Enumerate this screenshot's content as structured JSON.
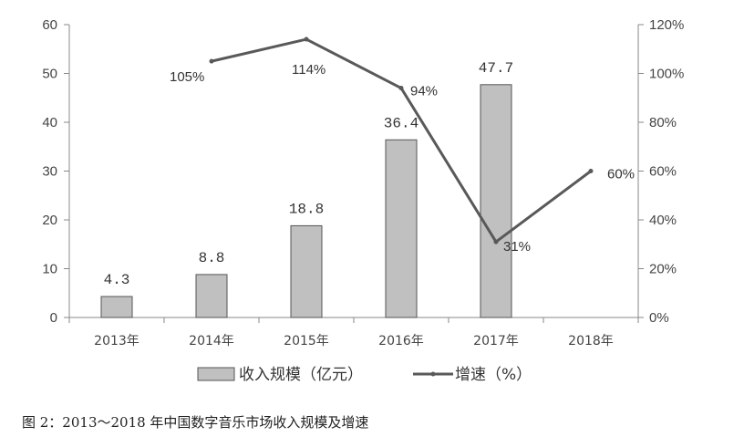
{
  "caption": "图 2：2013～2018 年中国数字音乐市场收入规模及增速",
  "legend": {
    "bar_label": "收入规模（亿元）",
    "line_label": "增速（%）"
  },
  "chart_data": {
    "type": "bar",
    "categories": [
      "2013年",
      "2014年",
      "2015年",
      "2016年",
      "2017年",
      "2018年"
    ],
    "series": [
      {
        "name": "收入规模（亿元）",
        "type": "bar",
        "axis": "left",
        "values": [
          4.3,
          8.8,
          18.8,
          36.4,
          47.7,
          null
        ],
        "labels": [
          "4.3",
          "8.8",
          "18.8",
          "36.4",
          "47.7",
          ""
        ],
        "color": "#c0c0c0"
      },
      {
        "name": "增速（%）",
        "type": "line",
        "axis": "right",
        "values": [
          null,
          105,
          114,
          94,
          31,
          60
        ],
        "labels": [
          "",
          "105%",
          "114%",
          "94%",
          "31%",
          "60%"
        ],
        "color": "#595959"
      }
    ],
    "y_left": {
      "ylim": [
        0,
        60
      ],
      "ticks": [
        "0",
        "10",
        "20",
        "30",
        "40",
        "50",
        "60"
      ]
    },
    "y_right": {
      "ylim": [
        0,
        120
      ],
      "ticks": [
        "0%",
        "20%",
        "40%",
        "60%",
        "80%",
        "100%",
        "120%"
      ]
    },
    "grid": false,
    "legend_position": "bottom"
  }
}
